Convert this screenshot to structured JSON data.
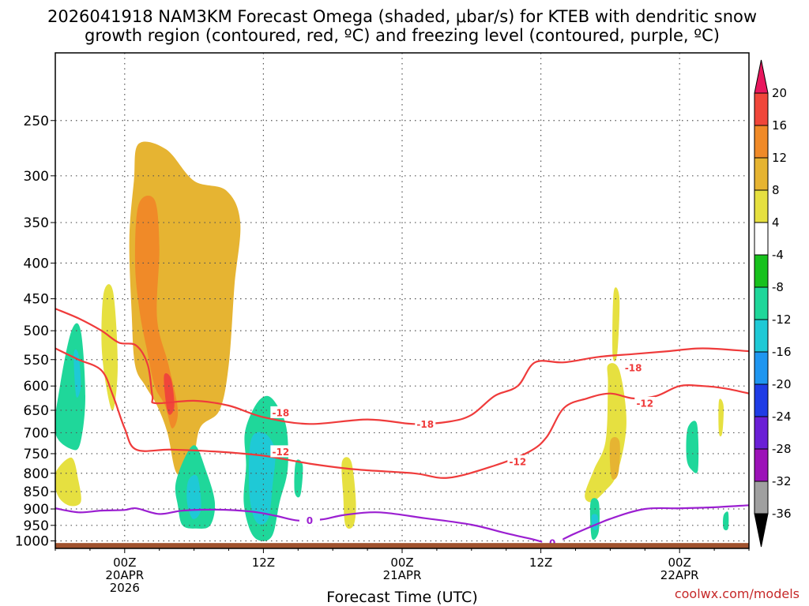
{
  "chart_data": {
    "type": "contour-time-height",
    "title": "2026041918 NAM3KM Forecast Omega (shaded, μbar/s) for KTEB with dendritic snow growth region (contoured, red, ºC) and freezing level (contoured, purple, ºC)",
    "xlabel": "Forecast Time (UTC)",
    "ylabel": "",
    "credit": "coolwx.com/models",
    "x_range_hours": [
      -6,
      54
    ],
    "y_range_hpa": [
      200,
      1025
    ],
    "y_scale": "log",
    "y_ticks": [
      250,
      300,
      350,
      400,
      450,
      500,
      550,
      600,
      650,
      700,
      750,
      800,
      850,
      900,
      950,
      1000
    ],
    "x_ticks": [
      {
        "hour": 0,
        "lines": [
          "00Z",
          "20APR",
          "2026"
        ]
      },
      {
        "hour": 12,
        "lines": [
          "12Z"
        ]
      },
      {
        "hour": 24,
        "lines": [
          "00Z",
          "21APR"
        ]
      },
      {
        "hour": 36,
        "lines": [
          "12Z"
        ]
      },
      {
        "hour": 48,
        "lines": [
          "00Z",
          "22APR"
        ]
      }
    ],
    "colorbar": {
      "labels": [
        "20",
        "16",
        "12",
        "8",
        "4",
        "-4",
        "-8",
        "-12",
        "-16",
        "-20",
        "-24",
        "-28",
        "-32",
        "-36"
      ],
      "colors": [
        "#e8175d",
        "#f0463a",
        "#f08a28",
        "#e6b432",
        "#e6e040",
        "#ffffff",
        "#17c11d",
        "#1fd79a",
        "#1fc9d6",
        "#1f96f0",
        "#1f3ce6",
        "#6a1fd6",
        "#9c12b8",
        "#a0a0a0",
        "#000000"
      ]
    },
    "surface_color": "#a0522d",
    "omega_regions": [
      {
        "name": "ascent-core-hour3",
        "value": 8,
        "points": [
          [
            1.2,
            270
          ],
          [
            3.6,
            275
          ],
          [
            6,
            305
          ],
          [
            8.8,
            315
          ],
          [
            10,
            350
          ],
          [
            9.5,
            430
          ],
          [
            9,
            560
          ],
          [
            8.2,
            650
          ],
          [
            6.5,
            690
          ],
          [
            5.8,
            790
          ],
          [
            4.5,
            800
          ],
          [
            3.7,
            700
          ],
          [
            2.8,
            640
          ],
          [
            1.8,
            600
          ],
          [
            0.9,
            560
          ],
          [
            0.6,
            470
          ],
          [
            0.4,
            370
          ],
          [
            0.8,
            305
          ]
        ]
      },
      {
        "name": "ascent-hour3-core",
        "value": 12,
        "points": [
          [
            1.2,
            330
          ],
          [
            2.6,
            325
          ],
          [
            3,
            380
          ],
          [
            2.8,
            480
          ],
          [
            3.8,
            560
          ],
          [
            4.6,
            650
          ],
          [
            4.1,
            690
          ],
          [
            3.5,
            640
          ],
          [
            2.6,
            600
          ],
          [
            1.9,
            530
          ],
          [
            1.3,
            470
          ],
          [
            0.9,
            400
          ]
        ]
      },
      {
        "name": "ascent-hour4-max",
        "value": 16,
        "points": [
          [
            3.4,
            580
          ],
          [
            4,
            585
          ],
          [
            4.3,
            640
          ],
          [
            3.9,
            660
          ],
          [
            3.6,
            640
          ]
        ]
      },
      {
        "name": "ascent-west",
        "value": 4,
        "points": [
          [
            -1.8,
            440
          ],
          [
            -1,
            440
          ],
          [
            -0.6,
            560
          ],
          [
            -1,
            650
          ],
          [
            -1.6,
            600
          ],
          [
            -2,
            520
          ]
        ]
      },
      {
        "name": "ascent-low-west",
        "value": 4,
        "points": [
          [
            -6,
            800
          ],
          [
            -4.6,
            760
          ],
          [
            -4,
            820
          ],
          [
            -3.8,
            880
          ],
          [
            -4.8,
            890
          ],
          [
            -5.8,
            860
          ]
        ]
      },
      {
        "name": "ascent-hour20",
        "value": 4,
        "points": [
          [
            18.8,
            770
          ],
          [
            19.6,
            770
          ],
          [
            20,
            880
          ],
          [
            19.8,
            950
          ],
          [
            19.1,
            950
          ],
          [
            18.9,
            860
          ]
        ]
      },
      {
        "name": "ascent-hour44",
        "value": 4,
        "points": [
          [
            41.8,
            560
          ],
          [
            42.8,
            570
          ],
          [
            43.4,
            680
          ],
          [
            42.6,
            800
          ],
          [
            41.5,
            850
          ],
          [
            40.4,
            880
          ],
          [
            39.8,
            860
          ],
          [
            40.6,
            790
          ],
          [
            41.6,
            720
          ],
          [
            41.8,
            600
          ]
        ]
      },
      {
        "name": "ascent-hour43-upper",
        "value": 4,
        "points": [
          [
            42.3,
            440
          ],
          [
            42.8,
            450
          ],
          [
            42.6,
            540
          ],
          [
            42.2,
            540
          ]
        ]
      },
      {
        "name": "ascent-hour43-core",
        "value": 8,
        "points": [
          [
            42,
            720
          ],
          [
            42.8,
            720
          ],
          [
            42.7,
            800
          ],
          [
            42.1,
            810
          ]
        ]
      },
      {
        "name": "ascent-hour52",
        "value": 4,
        "points": [
          [
            51.4,
            630
          ],
          [
            51.8,
            640
          ],
          [
            51.7,
            700
          ],
          [
            51.4,
            700
          ]
        ]
      },
      {
        "name": "descent-west",
        "value": -8,
        "points": [
          [
            -4.6,
            500
          ],
          [
            -3.8,
            500
          ],
          [
            -3.4,
            620
          ],
          [
            -3.8,
            720
          ],
          [
            -4.5,
            740
          ],
          [
            -6,
            700
          ],
          [
            -5.6,
            600
          ]
        ]
      },
      {
        "name": "descent-west-core",
        "value": -12,
        "points": [
          [
            -4.4,
            540
          ],
          [
            -4,
            540
          ],
          [
            -3.8,
            600
          ],
          [
            -4.2,
            620
          ]
        ]
      },
      {
        "name": "descent-hour6",
        "value": -8,
        "points": [
          [
            4.4,
            830
          ],
          [
            5.2,
            760
          ],
          [
            6.1,
            730
          ],
          [
            7,
            790
          ],
          [
            7.8,
            880
          ],
          [
            7.4,
            950
          ],
          [
            6.2,
            960
          ],
          [
            5,
            950
          ],
          [
            4.6,
            890
          ]
        ]
      },
      {
        "name": "descent-hour6-core",
        "value": -12,
        "points": [
          [
            5.5,
            820
          ],
          [
            6.3,
            810
          ],
          [
            6.6,
            900
          ],
          [
            5.9,
            930
          ],
          [
            5.4,
            880
          ]
        ]
      },
      {
        "name": "descent-hour11",
        "value": -8,
        "points": [
          [
            10.4,
            700
          ],
          [
            11.3,
            640
          ],
          [
            12.3,
            620
          ],
          [
            13.2,
            640
          ],
          [
            14,
            690
          ],
          [
            14.1,
            790
          ],
          [
            13.4,
            880
          ],
          [
            12.8,
            980
          ],
          [
            11.8,
            1000
          ],
          [
            10.9,
            970
          ],
          [
            10.3,
            880
          ],
          [
            10.5,
            780
          ]
        ]
      },
      {
        "name": "descent-hour11-core",
        "value": -12,
        "points": [
          [
            10.9,
            720
          ],
          [
            12,
            700
          ],
          [
            13,
            740
          ],
          [
            12.8,
            830
          ],
          [
            12.4,
            930
          ],
          [
            11.4,
            940
          ],
          [
            10.8,
            860
          ]
        ]
      },
      {
        "name": "descent-hour15",
        "value": -8,
        "points": [
          [
            14.8,
            770
          ],
          [
            15.4,
            780
          ],
          [
            15.2,
            860
          ],
          [
            14.7,
            850
          ]
        ]
      },
      {
        "name": "descent-hour42",
        "value": -8,
        "points": [
          [
            40.3,
            880
          ],
          [
            41,
            880
          ],
          [
            41,
            970
          ],
          [
            40.4,
            990
          ]
        ]
      },
      {
        "name": "descent-hour42-core",
        "value": -12,
        "points": [
          [
            40.4,
            920
          ],
          [
            40.9,
            920
          ],
          [
            40.9,
            960
          ],
          [
            40.5,
            960
          ]
        ]
      },
      {
        "name": "descent-hour49",
        "value": -8,
        "points": [
          [
            48.7,
            690
          ],
          [
            49.5,
            680
          ],
          [
            49.6,
            790
          ],
          [
            49,
            790
          ],
          [
            48.6,
            760
          ]
        ]
      },
      {
        "name": "descent-hour52",
        "value": -8,
        "points": [
          [
            51.8,
            920
          ],
          [
            52.2,
            910
          ],
          [
            52.2,
            960
          ],
          [
            51.8,
            960
          ]
        ]
      }
    ],
    "contours": [
      {
        "name": "minus-18-contour",
        "label": "-18",
        "color": "#ef3b3b",
        "label_positions": [
          [
            13.5,
            655
          ],
          [
            26,
            680
          ],
          [
            44,
            565
          ]
        ],
        "points": [
          [
            -6,
            465
          ],
          [
            -4,
            480
          ],
          [
            -2,
            500
          ],
          [
            -0.5,
            520
          ],
          [
            1,
            525
          ],
          [
            2,
            560
          ],
          [
            2.4,
            620
          ],
          [
            2.7,
            635
          ],
          [
            6,
            630
          ],
          [
            9,
            640
          ],
          [
            12,
            665
          ],
          [
            16,
            680
          ],
          [
            21,
            670
          ],
          [
            25,
            680
          ],
          [
            28,
            675
          ],
          [
            30,
            660
          ],
          [
            32,
            620
          ],
          [
            34,
            600
          ],
          [
            35.5,
            555
          ],
          [
            38,
            555
          ],
          [
            41,
            545
          ],
          [
            44,
            540
          ],
          [
            47,
            535
          ],
          [
            50,
            530
          ],
          [
            54,
            535
          ]
        ]
      },
      {
        "name": "minus-12-contour",
        "label": "-12",
        "color": "#ef3b3b",
        "label_positions": [
          [
            13.5,
            745
          ],
          [
            34,
            770
          ],
          [
            45,
            635
          ]
        ],
        "points": [
          [
            -6,
            530
          ],
          [
            -4,
            550
          ],
          [
            -2,
            570
          ],
          [
            -1,
            620
          ],
          [
            0,
            690
          ],
          [
            1,
            740
          ],
          [
            4,
            740
          ],
          [
            8,
            745
          ],
          [
            12,
            755
          ],
          [
            16,
            775
          ],
          [
            20,
            790
          ],
          [
            25,
            800
          ],
          [
            28,
            812
          ],
          [
            32,
            780
          ],
          [
            35,
            745
          ],
          [
            36.5,
            710
          ],
          [
            38,
            645
          ],
          [
            40,
            625
          ],
          [
            42,
            615
          ],
          [
            44,
            625
          ],
          [
            46,
            620
          ],
          [
            48,
            600
          ],
          [
            50,
            600
          ],
          [
            52,
            605
          ],
          [
            54,
            615
          ]
        ]
      },
      {
        "name": "zero-degree-contour",
        "label": "0",
        "color": "#9b1fd1",
        "label_positions": [
          [
            16,
            934
          ],
          [
            37,
            1006
          ]
        ],
        "points": [
          [
            -6,
            898
          ],
          [
            -4,
            910
          ],
          [
            -2,
            905
          ],
          [
            0,
            903
          ],
          [
            1,
            898
          ],
          [
            3,
            915
          ],
          [
            5,
            905
          ],
          [
            8,
            902
          ],
          [
            11,
            908
          ],
          [
            13,
            920
          ],
          [
            15,
            935
          ],
          [
            17,
            932
          ],
          [
            19,
            918
          ],
          [
            22,
            910
          ],
          [
            26,
            928
          ],
          [
            30,
            948
          ],
          [
            33,
            975
          ],
          [
            35,
            992
          ],
          [
            37,
            1006
          ],
          [
            39,
            975
          ],
          [
            42,
            930
          ],
          [
            45,
            900
          ],
          [
            48,
            898
          ],
          [
            51,
            895
          ],
          [
            54,
            889
          ]
        ]
      }
    ]
  }
}
